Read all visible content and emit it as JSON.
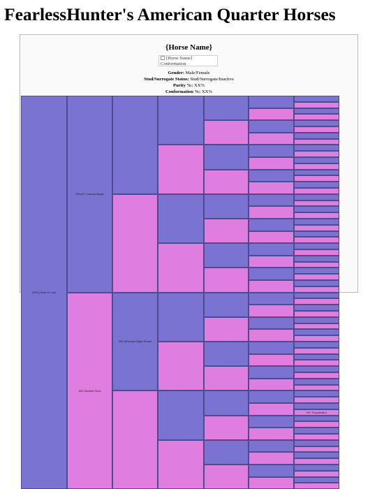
{
  "page": {
    "title": "FearlessHunter's American Quarter Horses"
  },
  "card": {
    "horse_name": "{Horse Name}",
    "image_alt": "{Horse Name} Conformation",
    "gender_label": "Gender:",
    "gender_value": "Male/Female",
    "status_label": "Stud/Surrogate Status:",
    "status_value": "Stud/Surrogate/Inactive",
    "purity_label": "Purity %:",
    "purity_value": "XX%",
    "conformation_label": "Conformation %:",
    "conformation_value": "XX%"
  },
  "pedigree": {
    "colors": {
      "sire": "#7b73d2",
      "dam": "#e07ee0",
      "border": "#4e4a8e"
    },
    "labels": {
      "g1_0": "(FEO) Best of Luck",
      "g2_0": "IDCwG Cowboy Magic",
      "g2_1": "WD Radium Glow",
      "g3_2": "WD Wizzards Night Shade",
      "g7_51": "RH Thunderbird"
    }
  }
}
